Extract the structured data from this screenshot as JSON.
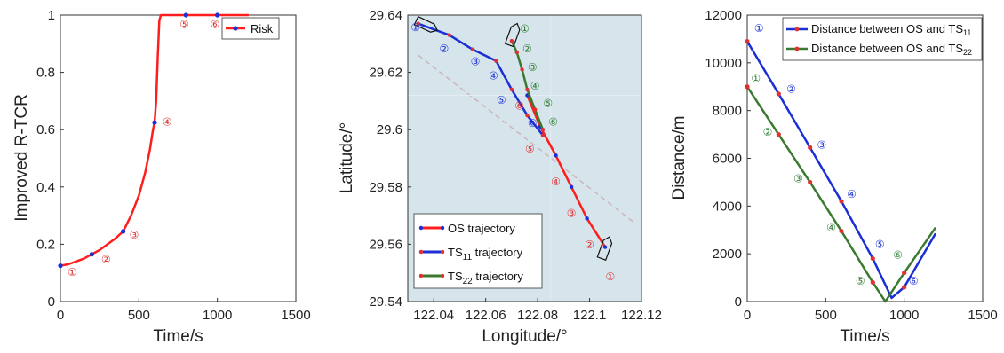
{
  "colors": {
    "red": "#ff1e1e",
    "blue": "#1a2fd6",
    "green": "#3a7a2f",
    "marker_red": "#e03030",
    "marker_blue": "#1a2fd6",
    "marker_green": "#2e7d32",
    "map_bg": "#d6e4ec"
  },
  "chart_data": [
    {
      "type": "line",
      "xlabel": "Time/s",
      "ylabel": "Improved R-TCR",
      "xlim": [
        0,
        1500
      ],
      "ylim": [
        0,
        1
      ],
      "xticks": [
        0,
        500,
        1000,
        1500
      ],
      "yticks": [
        0,
        0.2,
        0.4,
        0.6,
        0.8,
        1
      ],
      "xtick_labels": [
        "0",
        "500",
        "1000",
        "1500"
      ],
      "ytick_labels": [
        "0",
        "0.2",
        "0.4",
        "0.6",
        "0.8",
        "1"
      ],
      "legend": {
        "position": "top-right",
        "entries": [
          "Risk"
        ]
      },
      "series": [
        {
          "name": "Risk",
          "color": "#ff1e1e",
          "x": [
            0,
            50,
            100,
            150,
            200,
            250,
            300,
            350,
            400,
            450,
            500,
            540,
            570,
            590,
            600,
            610,
            620,
            630,
            640,
            700,
            800,
            900,
            1000,
            1100,
            1200
          ],
          "y": [
            0.125,
            0.13,
            0.14,
            0.15,
            0.165,
            0.18,
            0.2,
            0.22,
            0.245,
            0.3,
            0.37,
            0.45,
            0.53,
            0.6,
            0.625,
            0.7,
            0.85,
            0.98,
            1.0,
            1.0,
            1.0,
            1.0,
            1.0,
            1.0,
            1.0
          ],
          "markers_x": [
            0,
            200,
            400,
            600,
            800,
            1000
          ],
          "markers_y": [
            0.125,
            0.165,
            0.245,
            0.625,
            1.0,
            1.0
          ]
        }
      ],
      "annotations": [
        {
          "text": "①",
          "x": 75,
          "y": 0.09,
          "color": "#e03030"
        },
        {
          "text": "②",
          "x": 290,
          "y": 0.135,
          "color": "#e03030"
        },
        {
          "text": "③",
          "x": 470,
          "y": 0.22,
          "color": "#e03030"
        },
        {
          "text": "④",
          "x": 680,
          "y": 0.615,
          "color": "#e03030"
        },
        {
          "text": "⑤",
          "x": 790,
          "y": 0.955,
          "color": "#e03030"
        },
        {
          "text": "⑥",
          "x": 985,
          "y": 0.955,
          "color": "#e03030"
        }
      ]
    },
    {
      "type": "line",
      "xlabel": "Longitude/°",
      "ylabel": "Latitude/°",
      "xlim": [
        122.03,
        122.12
      ],
      "ylim": [
        29.54,
        29.64
      ],
      "xticks": [
        122.04,
        122.06,
        122.08,
        122.1,
        122.12
      ],
      "yticks": [
        29.54,
        29.56,
        29.58,
        29.6,
        29.62,
        29.64
      ],
      "xtick_labels": [
        "122.04",
        "122.06",
        "122.08",
        "122.1",
        "122.12"
      ],
      "ytick_labels": [
        "29.54",
        "29.56",
        "29.58",
        "29.6",
        "29.62",
        "29.64"
      ],
      "legend": {
        "position": "bottom-left",
        "entries": [
          "OS  trajectory",
          "TS11 trajectory",
          "TS22 trajectory"
        ],
        "labels": [
          {
            "base": "OS  trajectory",
            "sub": ""
          },
          {
            "base": "TS",
            "sub": "11",
            "rest": " trajectory"
          },
          {
            "base": "TS",
            "sub": "22",
            "rest": " trajectory"
          }
        ]
      },
      "series": [
        {
          "name": "OS  trajectory",
          "color": "#ff1e1e",
          "x": [
            122.106,
            122.099,
            122.093,
            122.087,
            122.081,
            122.076
          ],
          "y": [
            29.559,
            29.569,
            29.58,
            29.591,
            29.601,
            29.612
          ]
        },
        {
          "name": "TS11 trajectory",
          "color": "#1a2fd6",
          "x": [
            122.034,
            122.046,
            122.055,
            122.064,
            122.07,
            122.076,
            122.082
          ],
          "y": [
            29.637,
            29.633,
            29.628,
            29.624,
            29.614,
            29.605,
            29.598
          ]
        },
        {
          "name": "TS22 trajectory",
          "color": "#3a7a2f",
          "x": [
            122.07,
            122.072,
            122.074,
            122.076,
            122.079,
            122.082
          ],
          "y": [
            29.631,
            29.627,
            29.621,
            29.614,
            29.607,
            29.6
          ]
        }
      ],
      "annotations": [
        {
          "text": "①",
          "x": 122.033,
          "y": 29.6345,
          "color": "#1a2fd6"
        },
        {
          "text": "②",
          "x": 122.044,
          "y": 29.627,
          "color": "#1a2fd6"
        },
        {
          "text": "③",
          "x": 122.056,
          "y": 29.6225,
          "color": "#1a2fd6"
        },
        {
          "text": "④",
          "x": 122.063,
          "y": 29.6175,
          "color": "#1a2fd6"
        },
        {
          "text": "⑤",
          "x": 122.066,
          "y": 29.609,
          "color": "#1a2fd6"
        },
        {
          "text": "⑥",
          "x": 122.078,
          "y": 29.601,
          "color": "#1a2fd6"
        },
        {
          "text": "①",
          "x": 122.075,
          "y": 29.634,
          "color": "#2e7d32"
        },
        {
          "text": "②",
          "x": 122.076,
          "y": 29.627,
          "color": "#2e7d32"
        },
        {
          "text": "③",
          "x": 122.078,
          "y": 29.6205,
          "color": "#2e7d32"
        },
        {
          "text": "④",
          "x": 122.079,
          "y": 29.614,
          "color": "#2e7d32"
        },
        {
          "text": "⑤",
          "x": 122.084,
          "y": 29.608,
          "color": "#2e7d32"
        },
        {
          "text": "⑥",
          "x": 122.086,
          "y": 29.6015,
          "color": "#2e7d32"
        },
        {
          "text": "⑥",
          "x": 122.073,
          "y": 29.607,
          "color": "#e03030"
        },
        {
          "text": "⑤",
          "x": 122.077,
          "y": 29.592,
          "color": "#e03030"
        },
        {
          "text": "④",
          "x": 122.087,
          "y": 29.5805,
          "color": "#e03030"
        },
        {
          "text": "③",
          "x": 122.093,
          "y": 29.5695,
          "color": "#e03030"
        },
        {
          "text": "②",
          "x": 122.1,
          "y": 29.5585,
          "color": "#e03030"
        },
        {
          "text": "①",
          "x": 122.108,
          "y": 29.5475,
          "color": "#e03030"
        }
      ]
    },
    {
      "type": "line",
      "xlabel": "Time/s",
      "ylabel": "Distance/m",
      "xlim": [
        0,
        1500
      ],
      "ylim": [
        0,
        12000
      ],
      "xticks": [
        0,
        500,
        1000,
        1500
      ],
      "yticks": [
        0,
        2000,
        4000,
        6000,
        8000,
        10000,
        12000
      ],
      "xtick_labels": [
        "0",
        "500",
        "1000",
        "1500"
      ],
      "ytick_labels": [
        "0",
        "2000",
        "4000",
        "6000",
        "8000",
        "10000",
        "12000"
      ],
      "legend": {
        "position": "top-right",
        "entries": [
          "Distance between OS and TS11",
          "Distance between OS and TS22"
        ],
        "labels": [
          {
            "base": "Distance between OS and TS",
            "sub": "11"
          },
          {
            "base": "Distance between OS and TS",
            "sub": "22"
          }
        ]
      },
      "series": [
        {
          "name": "Distance between OS and TS11",
          "color": "#1a2fd6",
          "x": [
            0,
            200,
            400,
            600,
            800,
            920,
            1000,
            1200
          ],
          "y": [
            10900,
            8700,
            6450,
            4200,
            1800,
            150,
            600,
            2850
          ],
          "markers_x": [
            0,
            200,
            400,
            600,
            800,
            1000
          ],
          "markers_y": [
            10900,
            8700,
            6450,
            4200,
            1800,
            600
          ]
        },
        {
          "name": "Distance between OS and TS22",
          "color": "#3a7a2f",
          "x": [
            0,
            200,
            400,
            600,
            800,
            880,
            1000,
            1200
          ],
          "y": [
            9000,
            7000,
            5000,
            2950,
            800,
            0,
            1200,
            3100
          ],
          "markers_x": [
            0,
            200,
            400,
            600,
            800,
            1000
          ],
          "markers_y": [
            9000,
            7000,
            5000,
            2950,
            800,
            1200
          ]
        }
      ],
      "annotations": [
        {
          "text": "①",
          "x": 75,
          "y": 11300,
          "color": "#1a2fd6"
        },
        {
          "text": "②",
          "x": 280,
          "y": 8750,
          "color": "#1a2fd6"
        },
        {
          "text": "③",
          "x": 475,
          "y": 6400,
          "color": "#1a2fd6"
        },
        {
          "text": "④",
          "x": 665,
          "y": 4350,
          "color": "#1a2fd6"
        },
        {
          "text": "⑤",
          "x": 845,
          "y": 2250,
          "color": "#1a2fd6"
        },
        {
          "text": "⑥",
          "x": 1060,
          "y": 700,
          "color": "#1a2fd6"
        },
        {
          "text": "①",
          "x": 55,
          "y": 9200,
          "color": "#2e7d32"
        },
        {
          "text": "②",
          "x": 130,
          "y": 6950,
          "color": "#2e7d32"
        },
        {
          "text": "③",
          "x": 325,
          "y": 5000,
          "color": "#2e7d32"
        },
        {
          "text": "④",
          "x": 535,
          "y": 2950,
          "color": "#2e7d32"
        },
        {
          "text": "⑤",
          "x": 720,
          "y": 700,
          "color": "#2e7d32"
        },
        {
          "text": "⑥",
          "x": 960,
          "y": 1800,
          "color": "#2e7d32"
        }
      ]
    }
  ]
}
